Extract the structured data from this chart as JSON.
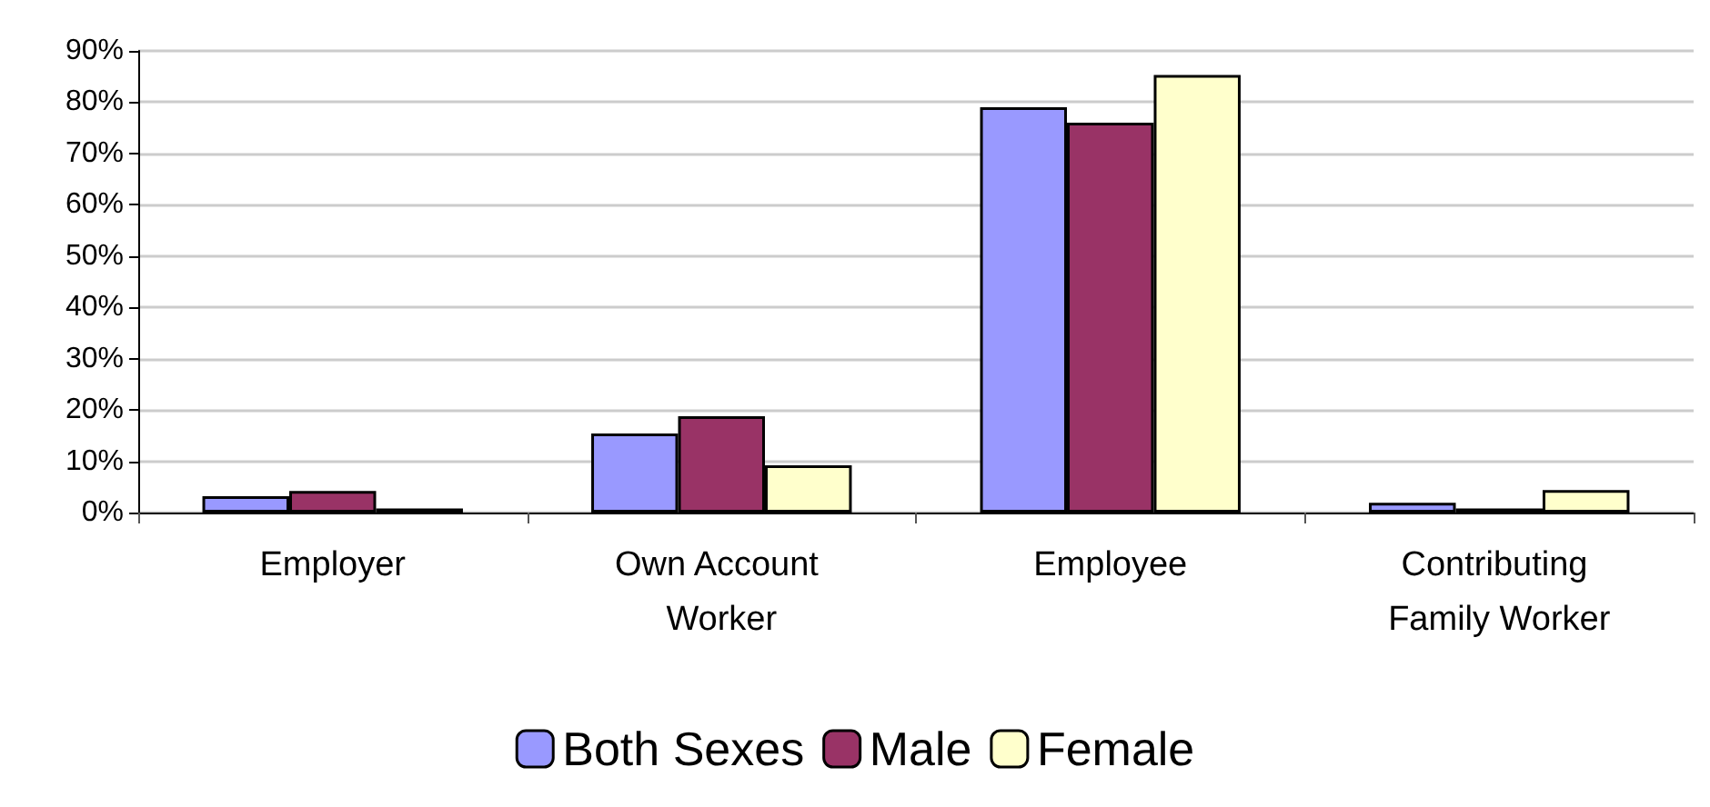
{
  "chart_data": {
    "type": "bar",
    "categories": [
      "Employer",
      "Own Account Worker",
      "Employee",
      "Contributing Family Worker"
    ],
    "series": [
      {
        "name": "Both Sexes",
        "color": "#9999ff",
        "values": [
          3.2,
          15.4,
          79.0,
          1.9
        ]
      },
      {
        "name": "Male",
        "color": "#993366",
        "values": [
          4.2,
          18.8,
          76.0,
          0.8
        ]
      },
      {
        "name": "Female",
        "color": "#ffffcc",
        "values": [
          0.8,
          9.2,
          85.3,
          4.4
        ]
      }
    ],
    "ylim": [
      0,
      90
    ],
    "yticks": [
      {
        "value": 0,
        "label": "0%"
      },
      {
        "value": 10,
        "label": "10%"
      },
      {
        "value": 20,
        "label": "20%"
      },
      {
        "value": 30,
        "label": "30%"
      },
      {
        "value": 40,
        "label": "40%"
      },
      {
        "value": 50,
        "label": "50%"
      },
      {
        "value": 60,
        "label": "60%"
      },
      {
        "value": 70,
        "label": "70%"
      },
      {
        "value": 80,
        "label": "80%"
      },
      {
        "value": 90,
        "label": "90%"
      }
    ],
    "grid": "y",
    "legend": "bottom"
  }
}
